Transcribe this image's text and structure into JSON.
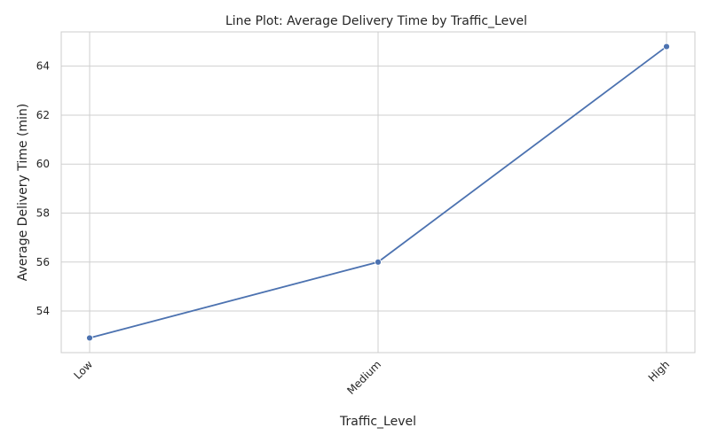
{
  "chart_data": {
    "type": "line",
    "title": "Line Plot: Average Delivery Time by Traffic_Level",
    "xlabel": "Traffic_Level",
    "ylabel": "Average Delivery Time (min)",
    "categories": [
      "Low",
      "Medium",
      "High"
    ],
    "series": [
      {
        "values": [
          52.9,
          56.0,
          64.8
        ]
      }
    ],
    "ylim": [
      52.3,
      65.4
    ],
    "yticks": [
      54,
      56,
      58,
      60,
      62,
      64
    ],
    "grid": true,
    "x_tick_rotation": "45 degrees",
    "line_color": "#4c72b0",
    "marker": "circle"
  }
}
